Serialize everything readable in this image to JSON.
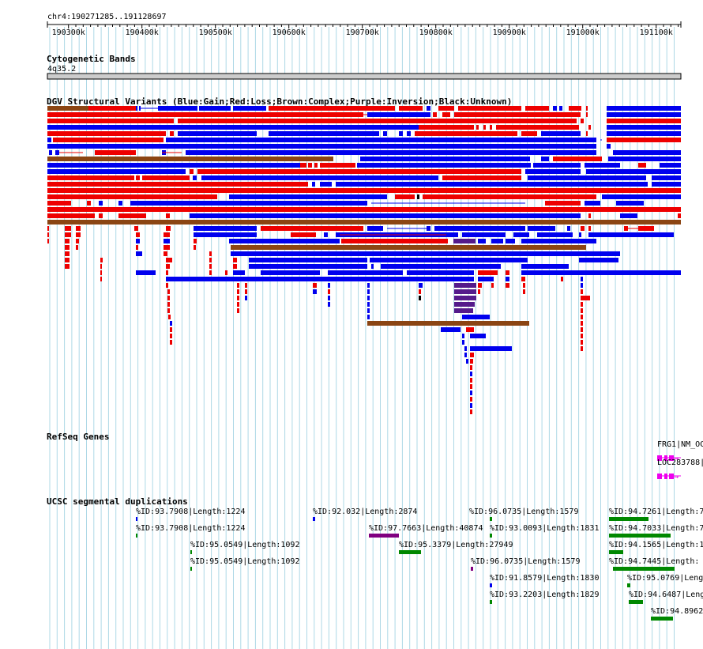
{
  "position": "chr4:190271285..191128697",
  "ruler": {
    "ticks": [
      {
        "pos": 190300000,
        "label": "190300k"
      },
      {
        "pos": 190400000,
        "label": "190400k"
      },
      {
        "pos": 190500000,
        "label": "190500k"
      },
      {
        "pos": 190600000,
        "label": "190600k"
      },
      {
        "pos": 190700000,
        "label": "190700k"
      },
      {
        "pos": 190800000,
        "label": "190800k"
      },
      {
        "pos": 190900000,
        "label": "190900k"
      },
      {
        "pos": 191000000,
        "label": "191000k"
      },
      {
        "pos": 191100000,
        "label": "191100k"
      }
    ]
  },
  "tracks": {
    "cytoband": {
      "title": "Cytogenetic Bands",
      "band": "4q35.2"
    },
    "dgv": {
      "title": "DGV Structural Variants (Blue:Gain;Red:Loss;Brown:Complex;Purple:Inversion;Black:Unknown)"
    },
    "refseq": {
      "title": "RefSeq Genes",
      "genes": [
        {
          "label": "FRG1|NM_OC",
          "start": 191080000
        },
        {
          "label": "LOC283788|",
          "start": 191080000
        }
      ]
    },
    "segdup": {
      "title": "UCSC segmental duplications",
      "features": [
        {
          "label": "%ID:93.7908|Length:1224",
          "color": "blue"
        },
        {
          "label": "%ID:92.032|Length:2874",
          "color": "blue"
        },
        {
          "label": "%ID:96.0735|Length:1579",
          "color": "green"
        },
        {
          "label": "%ID:94.7261|Length:7",
          "color": "green"
        },
        {
          "label": "%ID:93.7908|Length:1224",
          "color": "green"
        },
        {
          "label": "%ID:97.7663|Length:40874",
          "color": "purple"
        },
        {
          "label": "%ID:93.0093|Length:1831",
          "color": "green"
        },
        {
          "label": "%ID:94.7033|Length:7",
          "color": "green"
        },
        {
          "label": "%ID:95.0549|Length:1092",
          "color": "green"
        },
        {
          "label": "%ID:95.3379|Length:27949",
          "color": "green"
        },
        {
          "label": "%ID:94.1565|Length:1",
          "color": "green"
        },
        {
          "label": "%ID:95.0549|Length:1092",
          "color": "green"
        },
        {
          "label": "%ID:96.0735|Length:1579",
          "color": "purple"
        },
        {
          "label": "%ID:94.7445|Length:",
          "color": "green"
        },
        {
          "label": "%ID:91.8579|Length:1830",
          "color": "blue"
        },
        {
          "label": "%ID:95.0769|Lengt",
          "color": "green"
        },
        {
          "label": "%ID:93.2203|Length:1829",
          "color": "green"
        },
        {
          "label": "%ID:94.6487|Leng",
          "color": "green"
        },
        {
          "label": "%ID:94.8962",
          "color": "green"
        }
      ]
    }
  },
  "colors": {
    "gain": "#0000ee",
    "loss": "#ee0000",
    "complex": "#8b4513",
    "inversion": "#551a8b",
    "unknown": "#000000",
    "gene": "#ee00ee",
    "segdup_green": "#008800",
    "segdup_purple": "#800080",
    "segdup_blue": "#0000ee",
    "grid": "#add8e6"
  }
}
